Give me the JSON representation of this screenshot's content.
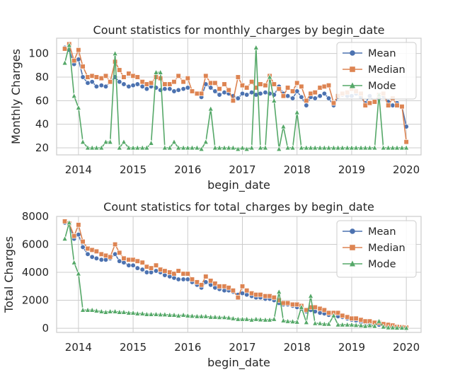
{
  "chart_data": [
    {
      "type": "line",
      "title": "Count statistics for monthly_charges by begin_date",
      "xlabel": "begin_date",
      "ylabel": "Monthly Charges",
      "xlim": [
        2013.6,
        2020.27
      ],
      "ylim": [
        14,
        113
      ],
      "xticks": [
        2014,
        2015,
        2016,
        2017,
        2018,
        2019,
        2020
      ],
      "yticks": [
        20,
        40,
        60,
        80,
        100
      ],
      "legend_position": "upper-right",
      "grid": true,
      "x": [
        2013.75,
        2013.83,
        2013.92,
        2014.0,
        2014.08,
        2014.17,
        2014.25,
        2014.33,
        2014.42,
        2014.5,
        2014.58,
        2014.67,
        2014.75,
        2014.83,
        2014.92,
        2015.0,
        2015.08,
        2015.17,
        2015.25,
        2015.33,
        2015.42,
        2015.5,
        2015.58,
        2015.67,
        2015.75,
        2015.83,
        2015.92,
        2016.0,
        2016.08,
        2016.17,
        2016.25,
        2016.33,
        2016.42,
        2016.5,
        2016.58,
        2016.67,
        2016.75,
        2016.83,
        2016.92,
        2017.0,
        2017.08,
        2017.17,
        2017.25,
        2017.33,
        2017.42,
        2017.5,
        2017.58,
        2017.67,
        2017.75,
        2017.83,
        2017.92,
        2018.0,
        2018.08,
        2018.17,
        2018.25,
        2018.33,
        2018.42,
        2018.5,
        2018.58,
        2018.67,
        2018.75,
        2018.83,
        2018.92,
        2019.0,
        2019.08,
        2019.17,
        2019.25,
        2019.33,
        2019.42,
        2019.5,
        2019.58,
        2019.67,
        2019.75,
        2019.83,
        2019.92,
        2020.0
      ],
      "series": [
        {
          "name": "Mean",
          "color": "#4c72b0",
          "marker": "circle",
          "values": [
            105,
            103,
            91,
            95,
            80,
            75,
            76,
            72,
            73,
            72,
            76,
            80,
            76,
            74,
            72,
            73,
            74,
            72,
            70,
            72,
            71,
            69,
            70,
            70,
            68,
            69,
            70,
            71,
            68,
            66,
            63,
            74,
            71,
            68,
            65,
            67,
            66,
            64,
            62,
            66,
            65,
            67,
            65,
            66,
            67,
            66,
            65,
            72,
            66,
            64,
            62,
            68,
            63,
            56,
            63,
            62,
            64,
            66,
            62,
            56,
            63,
            65,
            64,
            64,
            66,
            63,
            58,
            64,
            59,
            62,
            64,
            59,
            56,
            58,
            55,
            38
          ]
        },
        {
          "name": "Median",
          "color": "#dd8452",
          "marker": "square",
          "values": [
            104,
            108,
            94,
            103,
            89,
            80,
            81,
            80,
            79,
            81,
            76,
            93,
            86,
            80,
            83,
            81,
            80,
            76,
            74,
            75,
            80,
            79,
            74,
            74,
            76,
            81,
            76,
            79,
            68,
            66,
            66,
            81,
            75,
            75,
            70,
            74,
            69,
            60,
            80,
            73,
            71,
            76,
            71,
            74,
            73,
            81,
            74,
            70,
            64,
            71,
            68,
            75,
            72,
            60,
            66,
            67,
            71,
            72,
            73,
            58,
            64,
            66,
            67,
            70,
            68,
            66,
            56,
            58,
            59,
            65,
            66,
            56,
            62,
            56,
            55,
            25
          ]
        },
        {
          "name": "Mode",
          "color": "#55a868",
          "marker": "triangle",
          "values": [
            92,
            107,
            64,
            54,
            25,
            20,
            20,
            20,
            20,
            25,
            25,
            100,
            20,
            25,
            20,
            20,
            20,
            20,
            20,
            24,
            84,
            84,
            20,
            20,
            25,
            20,
            20,
            20,
            20,
            20,
            19,
            25,
            53,
            20,
            20,
            20,
            20,
            20,
            19,
            20,
            19,
            20,
            105,
            20,
            20,
            80,
            60,
            19,
            38,
            20,
            20,
            50,
            20,
            20,
            20,
            20,
            20,
            20,
            20,
            20,
            20,
            20,
            20,
            20,
            20,
            20,
            20,
            20,
            20,
            65,
            20,
            20,
            20,
            20,
            20,
            20
          ]
        }
      ]
    },
    {
      "type": "line",
      "title": "Count statistics for total_charges by begin_date",
      "xlabel": "begin_date",
      "ylabel": "Total Charges",
      "xlim": [
        2013.6,
        2020.27
      ],
      "ylim": [
        -300,
        8000
      ],
      "xticks": [
        2014,
        2015,
        2016,
        2017,
        2018,
        2019,
        2020
      ],
      "yticks": [
        0,
        2000,
        4000,
        6000,
        8000
      ],
      "legend_position": "upper-right",
      "grid": true,
      "x": [
        2013.75,
        2013.83,
        2013.92,
        2014.0,
        2014.08,
        2014.17,
        2014.25,
        2014.33,
        2014.42,
        2014.5,
        2014.58,
        2014.67,
        2014.75,
        2014.83,
        2014.92,
        2015.0,
        2015.08,
        2015.17,
        2015.25,
        2015.33,
        2015.42,
        2015.5,
        2015.58,
        2015.67,
        2015.75,
        2015.83,
        2015.92,
        2016.0,
        2016.08,
        2016.17,
        2016.25,
        2016.33,
        2016.42,
        2016.5,
        2016.58,
        2016.67,
        2016.75,
        2016.83,
        2016.92,
        2017.0,
        2017.08,
        2017.17,
        2017.25,
        2017.33,
        2017.42,
        2017.5,
        2017.58,
        2017.67,
        2017.75,
        2017.83,
        2017.92,
        2018.0,
        2018.08,
        2018.17,
        2018.25,
        2018.33,
        2018.42,
        2018.5,
        2018.58,
        2018.67,
        2018.75,
        2018.83,
        2018.92,
        2019.0,
        2019.08,
        2019.17,
        2019.25,
        2019.33,
        2019.42,
        2019.5,
        2019.58,
        2019.67,
        2019.75,
        2019.83,
        2019.92,
        2020.0
      ],
      "series": [
        {
          "name": "Mean",
          "color": "#4c72b0",
          "marker": "circle",
          "values": [
            7550,
            7450,
            6400,
            6700,
            5800,
            5300,
            5100,
            5000,
            4900,
            4900,
            5000,
            5300,
            4800,
            4700,
            4500,
            4500,
            4300,
            4200,
            4000,
            4000,
            4100,
            4000,
            3800,
            3700,
            3600,
            3500,
            3500,
            3500,
            3300,
            3100,
            2900,
            3300,
            3100,
            2900,
            2800,
            2700,
            2700,
            2600,
            2400,
            2500,
            2400,
            2300,
            2200,
            2200,
            2100,
            2100,
            2000,
            1800,
            1700,
            1700,
            1600,
            1500,
            1400,
            1200,
            1300,
            1200,
            1100,
            1050,
            950,
            900,
            850,
            800,
            700,
            600,
            550,
            450,
            400,
            350,
            300,
            250,
            200,
            150,
            100,
            80,
            50,
            38
          ]
        },
        {
          "name": "Median",
          "color": "#dd8452",
          "marker": "square",
          "values": [
            7650,
            7500,
            6600,
            7400,
            6200,
            5700,
            5600,
            5500,
            5300,
            5200,
            5100,
            6000,
            5400,
            5000,
            4900,
            4900,
            4800,
            4700,
            4400,
            4300,
            4500,
            4200,
            4100,
            4000,
            3900,
            4100,
            3900,
            3900,
            3500,
            3300,
            3100,
            3700,
            3400,
            3200,
            3000,
            3000,
            2900,
            2700,
            2200,
            3000,
            2700,
            2500,
            2400,
            2400,
            2300,
            2300,
            2200,
            2000,
            1800,
            1800,
            1700,
            1700,
            1600,
            1300,
            1500,
            1500,
            1400,
            1300,
            1100,
            1100,
            1100,
            900,
            800,
            700,
            700,
            600,
            500,
            500,
            400,
            400,
            300,
            250,
            200,
            100,
            80,
            50
          ]
        },
        {
          "name": "Mode",
          "color": "#55a868",
          "marker": "triangle",
          "values": [
            6400,
            7550,
            4700,
            3900,
            1300,
            1300,
            1300,
            1250,
            1200,
            1150,
            1200,
            1200,
            1150,
            1150,
            1100,
            1100,
            1050,
            1050,
            1000,
            1000,
            1000,
            980,
            980,
            950,
            950,
            900,
            950,
            900,
            880,
            850,
            850,
            850,
            800,
            800,
            780,
            780,
            750,
            700,
            650,
            650,
            650,
            600,
            650,
            620,
            600,
            600,
            650,
            2600,
            550,
            500,
            480,
            450,
            1500,
            420,
            2300,
            350,
            350,
            300,
            300,
            900,
            250,
            250,
            250,
            250,
            220,
            200,
            150,
            200,
            150,
            500,
            100,
            50,
            50,
            30,
            30,
            20
          ]
        }
      ]
    }
  ]
}
